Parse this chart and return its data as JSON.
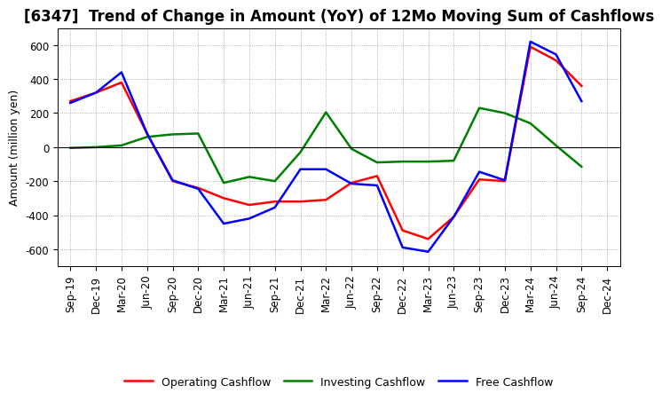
{
  "title": "[6347]  Trend of Change in Amount (YoY) of 12Mo Moving Sum of Cashflows",
  "ylabel": "Amount (million yen)",
  "xlabels": [
    "Sep-19",
    "Dec-19",
    "Mar-20",
    "Jun-20",
    "Sep-20",
    "Dec-20",
    "Mar-21",
    "Jun-21",
    "Sep-21",
    "Dec-21",
    "Mar-22",
    "Jun-22",
    "Sep-22",
    "Dec-22",
    "Mar-23",
    "Jun-23",
    "Sep-23",
    "Dec-23",
    "Mar-24",
    "Jun-24",
    "Sep-24",
    "Dec-24"
  ],
  "ylim": [
    -700,
    700
  ],
  "yticks": [
    -600,
    -400,
    -200,
    0,
    200,
    400,
    600
  ],
  "operating": [
    270,
    320,
    380,
    80,
    -200,
    -240,
    -300,
    -340,
    -320,
    -320,
    -310,
    -210,
    -170,
    -490,
    -540,
    -410,
    -190,
    -200,
    590,
    510,
    360,
    null
  ],
  "investing": [
    -5,
    0,
    10,
    60,
    75,
    80,
    -210,
    -175,
    -200,
    -30,
    205,
    -10,
    -90,
    -85,
    -85,
    -80,
    230,
    200,
    140,
    10,
    -115,
    null
  ],
  "free": [
    260,
    320,
    440,
    80,
    -195,
    -245,
    -450,
    -420,
    -355,
    -130,
    -130,
    -215,
    -225,
    -590,
    -615,
    -410,
    -145,
    -195,
    620,
    545,
    270,
    null
  ],
  "op_color": "#ff0000",
  "inv_color": "#008000",
  "free_color": "#0000ff",
  "bg_color": "#ffffff",
  "grid_color": "#999999",
  "title_fontsize": 12,
  "label_fontsize": 9,
  "tick_fontsize": 8.5,
  "legend_fontsize": 9,
  "linewidth": 1.8
}
